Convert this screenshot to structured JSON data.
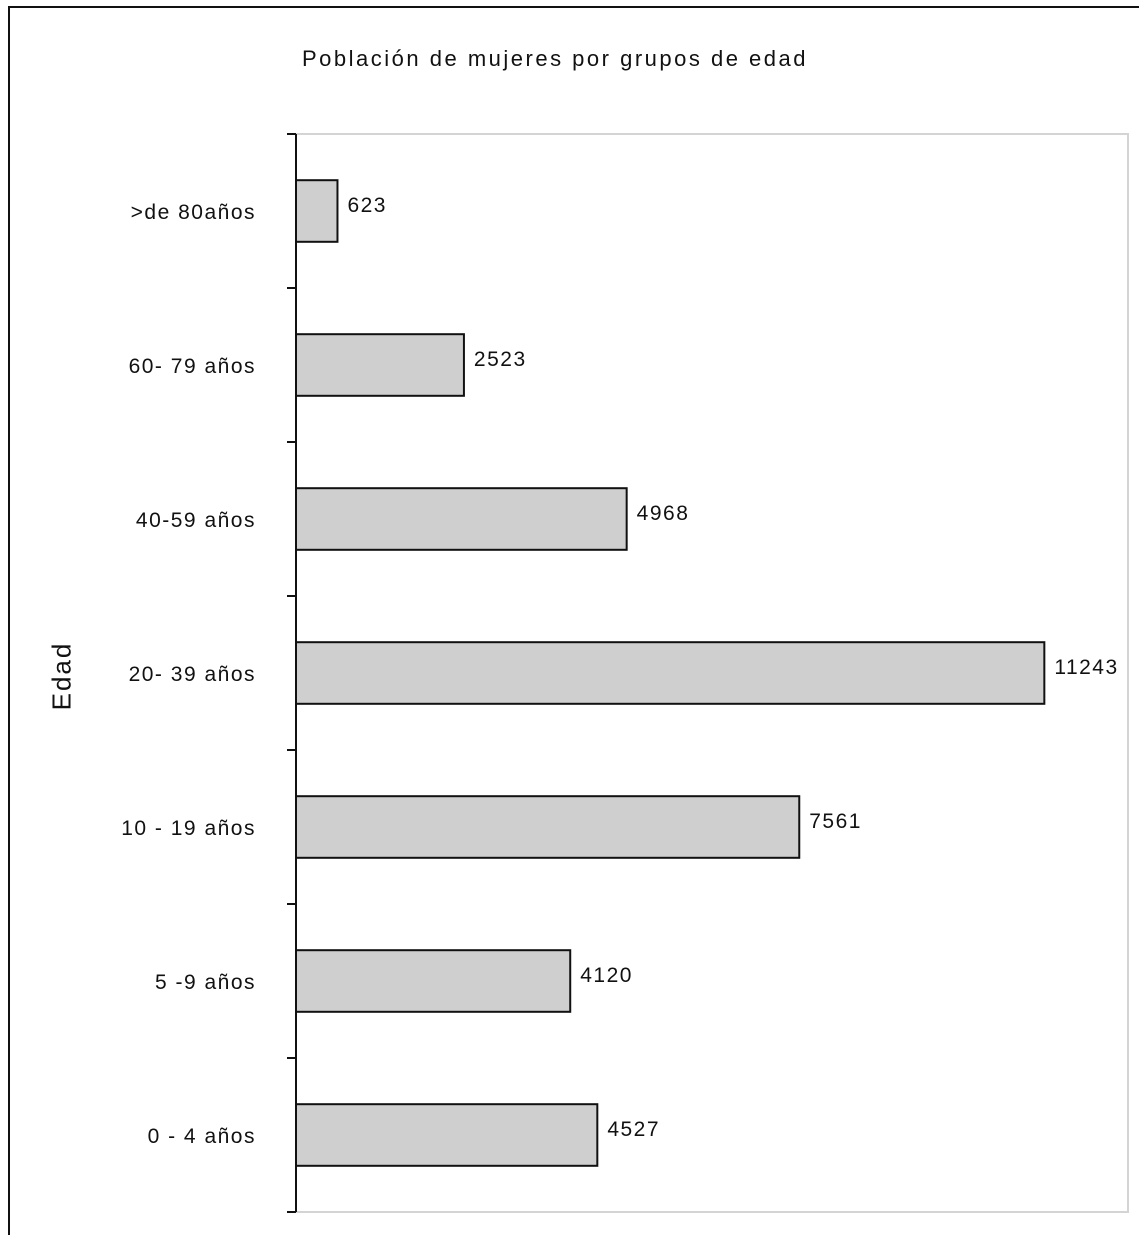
{
  "chart_data": {
    "type": "bar",
    "orientation": "horizontal",
    "title": "Población de mujeres por grupos de edad",
    "xlabel": "",
    "ylabel": "Edad",
    "categories": [
      ">de 80años",
      "60- 79 años",
      "40-59 años",
      "20- 39 años",
      "10 - 19 años",
      "5 -9 años",
      "0 - 4 años"
    ],
    "values": [
      623,
      2523,
      4968,
      11243,
      7561,
      4120,
      4527
    ],
    "value_labels": [
      "623",
      "2523",
      "4968",
      "11243",
      "7561",
      "4120",
      "4527"
    ],
    "xlim": [
      0,
      12500
    ],
    "grid": false,
    "legend": "none",
    "colors": {
      "bar_fill": "#cfcfcf",
      "bar_stroke": "#111111",
      "plot_border": "#d4d4d4",
      "axis": "#111111"
    }
  }
}
